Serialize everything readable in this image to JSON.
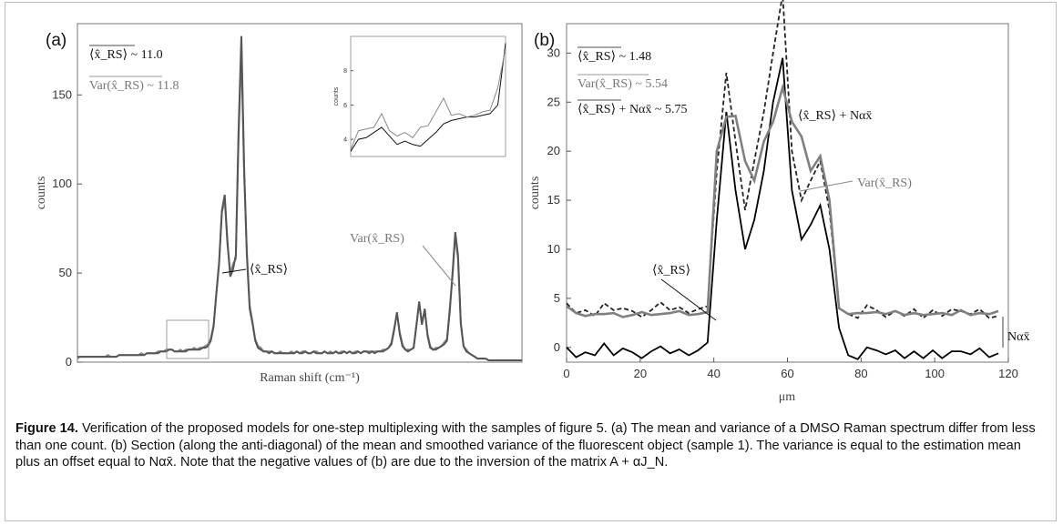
{
  "panel_a_label": "(a)",
  "panel_b_label": "(b)",
  "chart_data": [
    {
      "type": "line",
      "panel": "(a)",
      "xlabel": "Raman shift (cm⁻¹)",
      "ylabel": "counts",
      "ylim": [
        0,
        190
      ],
      "yticks": [
        "0",
        "50",
        "100",
        "150"
      ],
      "x_tick_labels_shown": false,
      "annotations": {
        "mean_value": "⟨x̂_RS⟩ ~ 11.0",
        "var_value": "Var(x̂_RS) ~ 11.8",
        "mean_curve": "⟨x̂_RS⟩",
        "var_curve": "Var(x̂_RS)"
      },
      "series": [
        {
          "name": "⟨x̂_RS⟩",
          "color": "#555555",
          "values": [
            3,
            3,
            3,
            3,
            3,
            3,
            3,
            3,
            3,
            3,
            3,
            3,
            3,
            3,
            3,
            4,
            4,
            4,
            4,
            4,
            4,
            4,
            4,
            4,
            4,
            5,
            5,
            5,
            5,
            5,
            6,
            6,
            6,
            7,
            7,
            6,
            6,
            6,
            6,
            6,
            7,
            7,
            7,
            7,
            7,
            8,
            8,
            9,
            12,
            20,
            38,
            55,
            85,
            94,
            68,
            48,
            52,
            60,
            130,
            183,
            110,
            60,
            30,
            22,
            12,
            8,
            7,
            6,
            6,
            5,
            6,
            5,
            5,
            5,
            5,
            5,
            5,
            5,
            5,
            6,
            5,
            5,
            6,
            5,
            5,
            6,
            5,
            5,
            5,
            6,
            5,
            5,
            5,
            6,
            5,
            5,
            6,
            5,
            6,
            5,
            5,
            6,
            5,
            6,
            6,
            5,
            6,
            5,
            6,
            6,
            6,
            7,
            8,
            10,
            18,
            28,
            16,
            9,
            7,
            6,
            7,
            8,
            20,
            34,
            21,
            30,
            15,
            8,
            7,
            7,
            8,
            9,
            10,
            12,
            28,
            50,
            73,
            60,
            22,
            9,
            6,
            5,
            4,
            3,
            2,
            2,
            2,
            2,
            1,
            1,
            1,
            1,
            1,
            1,
            1,
            1,
            1,
            1,
            1,
            1,
            1
          ]
        },
        {
          "name": "Var(x̂_RS)",
          "color": "#888888",
          "values": [
            2,
            3,
            3,
            3,
            3,
            3,
            3,
            3,
            3,
            3,
            3,
            4,
            3,
            3,
            3,
            4,
            4,
            4,
            4,
            4,
            4,
            4,
            4,
            5,
            4,
            5,
            5,
            5,
            5,
            6,
            6,
            6,
            7,
            7,
            7,
            6,
            6,
            7,
            6,
            7,
            7,
            7,
            8,
            7,
            8,
            8,
            9,
            10,
            13,
            21,
            39,
            56,
            84,
            91,
            66,
            50,
            55,
            58,
            125,
            175,
            105,
            62,
            32,
            23,
            13,
            9,
            8,
            6,
            6,
            6,
            6,
            5,
            5,
            6,
            5,
            5,
            5,
            6,
            5,
            6,
            5,
            6,
            6,
            5,
            5,
            6,
            6,
            5,
            5,
            6,
            5,
            6,
            5,
            6,
            5,
            6,
            6,
            5,
            6,
            5,
            6,
            6,
            5,
            6,
            6,
            6,
            6,
            6,
            6,
            6,
            7,
            7,
            8,
            11,
            19,
            27,
            17,
            10,
            7,
            7,
            7,
            8,
            21,
            33,
            22,
            29,
            16,
            9,
            7,
            8,
            8,
            9,
            11,
            13,
            30,
            48,
            71,
            58,
            21,
            9,
            7,
            5,
            4,
            3,
            2,
            2,
            2,
            2,
            1,
            1,
            1,
            1,
            1,
            1,
            1,
            1,
            1,
            1,
            1,
            1,
            1
          ]
        }
      ],
      "inset": {
        "ylabel": "counts",
        "yticks": [
          "4",
          "6",
          "8"
        ],
        "series": [
          {
            "name": "⟨x̂_RS⟩",
            "values": [
              3.3,
              4.0,
              4.1,
              4.4,
              4.7,
              4.2,
              3.7,
              3.9,
              3.7,
              3.6,
              4.0,
              4.4,
              4.9,
              5.1,
              5.2,
              5.3,
              5.3,
              5.4,
              5.5,
              6.0,
              9.6
            ]
          },
          {
            "name": "Var(x̂_RS)",
            "values": [
              3.4,
              4.5,
              4.6,
              4.7,
              5.5,
              4.5,
              4.2,
              4.4,
              4.1,
              4.7,
              4.8,
              5.6,
              6.4,
              5.4,
              5.5,
              5.3,
              5.4,
              5.6,
              5.7,
              7.0,
              9.3
            ]
          }
        ]
      }
    },
    {
      "type": "line",
      "panel": "(b)",
      "xlabel": "μm",
      "ylabel": "counts",
      "xlim": [
        0,
        120
      ],
      "ylim": [
        -1.5,
        33
      ],
      "xticks": [
        "0",
        "20",
        "40",
        "60",
        "80",
        "100",
        "120"
      ],
      "yticks": [
        "0",
        "5",
        "10",
        "15",
        "20",
        "25",
        "30"
      ],
      "annotations": {
        "mean_value": "⟨x̂_RS⟩ ~ 1.48",
        "var_value": "Var(x̂_RS) ~ 5.54",
        "offset_value": "⟨x̂_RS⟩ + Nαx̄ ~ 5.75",
        "offset_curve": "⟨x̂_RS⟩ + Nαx̄",
        "var_curve": "Var(x̂_RS)",
        "mean_curve": "⟨x̂_RS⟩",
        "bracket": "Nαx̄"
      },
      "x": [
        0,
        2.6,
        5.1,
        7.7,
        10.2,
        12.8,
        15.3,
        17.9,
        20.4,
        23,
        25.5,
        28.1,
        30.6,
        33.2,
        35.7,
        38.3,
        40.8,
        43.4,
        45.9,
        48.5,
        51,
        53.6,
        56.1,
        58.7,
        61.2,
        63.8,
        66.3,
        68.9,
        71.4,
        74,
        76.5,
        79.1,
        81.6,
        84.2,
        86.7,
        89.3,
        91.8,
        94.4,
        96.9,
        99.5,
        102,
        104.6,
        107.1,
        109.7,
        112.2,
        114.8,
        117.3
      ],
      "series": [
        {
          "name": "⟨x̂_RS⟩",
          "style": "solid",
          "color": "#000000",
          "values": [
            0,
            -1.0,
            -0.5,
            -0.8,
            0.4,
            -0.8,
            -0.1,
            -0.5,
            -1.1,
            -0.4,
            0.1,
            -0.6,
            -0.2,
            -0.8,
            -0.3,
            0.5,
            13,
            24,
            16,
            10,
            13,
            18,
            25,
            29.5,
            16,
            11,
            12.5,
            14.5,
            10,
            2,
            -0.8,
            -1.2,
            0,
            -0.3,
            -0.7,
            -0.3,
            -1.1,
            -0.4,
            -1.1,
            -0.3,
            -1.1,
            -0.4,
            -0.4,
            -0.7,
            -0.1,
            -1.0,
            -0.6
          ]
        },
        {
          "name": "⟨x̂_RS⟩ + Nαx̄",
          "style": "dashed",
          "color": "#222222",
          "values": [
            4.5,
            3.5,
            3.8,
            3.2,
            4.5,
            3.8,
            4.0,
            3.7,
            3.1,
            3.8,
            4.6,
            3.8,
            4.1,
            3.5,
            3.9,
            4.2,
            18,
            28,
            21,
            14,
            19,
            24,
            30,
            36,
            20,
            15,
            17,
            19,
            14,
            4,
            3.4,
            3.0,
            4.3,
            3.8,
            3.1,
            3.7,
            3.2,
            3.9,
            3.0,
            3.8,
            3.2,
            3.9,
            3.7,
            3.4,
            3.9,
            3.0,
            3.2
          ]
        },
        {
          "name": "Var(x̂_RS)",
          "style": "solid",
          "color": "#808080",
          "values": [
            4.2,
            3.5,
            3.2,
            3.4,
            3.4,
            3.5,
            3.1,
            3.3,
            3.6,
            3.3,
            3.4,
            3.5,
            3.7,
            3.3,
            3.4,
            3.6,
            20,
            23.5,
            23.6,
            19,
            17,
            21,
            23,
            26.5,
            23,
            21.5,
            18,
            19.5,
            15,
            4,
            3.4,
            3.5,
            3.5,
            3.6,
            3.4,
            3.7,
            3.3,
            3.5,
            3.3,
            3.4,
            3.5,
            3.3,
            3.8,
            3.3,
            3.5,
            3.4,
            3.7
          ]
        }
      ]
    }
  ],
  "caption": {
    "label": "Figure 14.",
    "text": " Verification of the proposed models for one-step multiplexing with the samples of figure 5. (a) The mean and variance of a DMSO Raman spectrum differ from less than one count. (b) Section (along the anti-diagonal) of the mean and smoothed variance of the fluorescent object (sample 1). The variance is equal to the estimation mean plus an offset equal to Nαx̄. Note that the negative values of (b) are due to the inversion of the matrix A + αJ_N."
  }
}
